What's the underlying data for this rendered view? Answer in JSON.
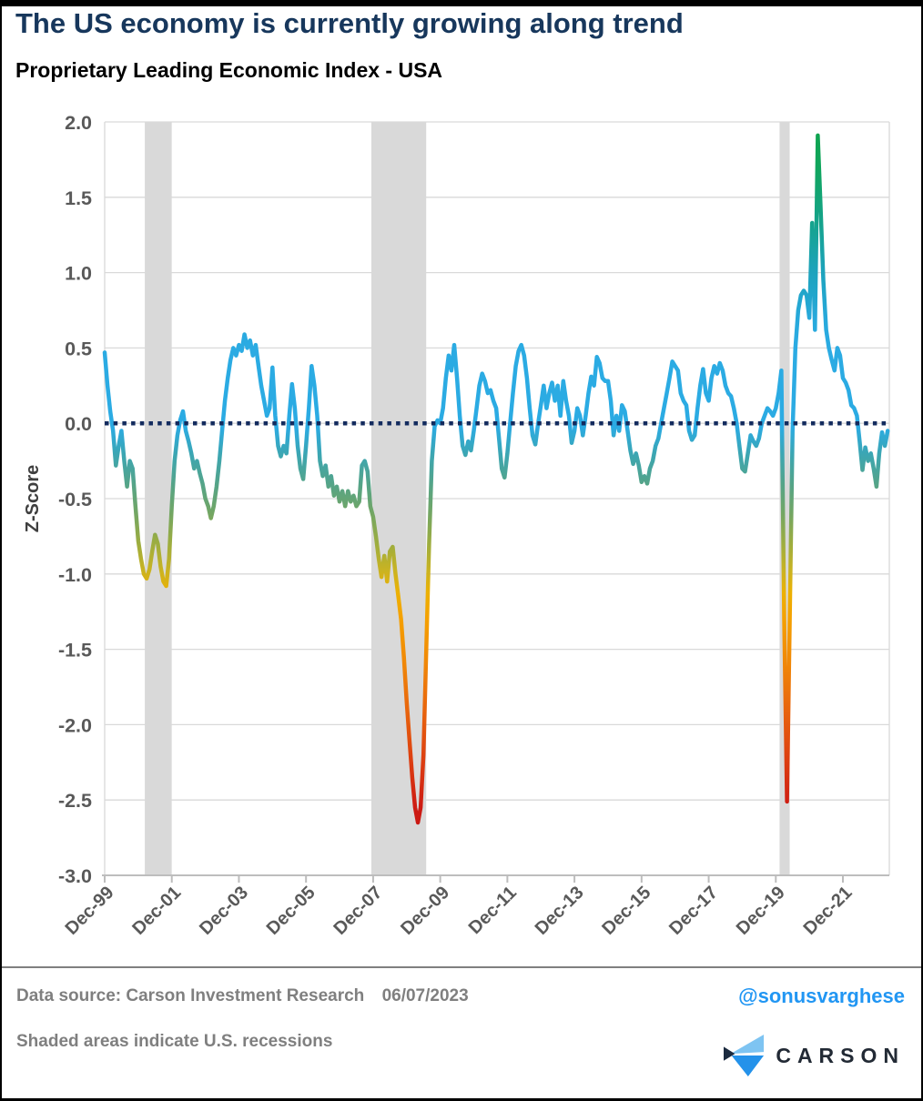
{
  "header": {
    "title": "The US economy is currently growing along trend",
    "subtitle": "Proprietary Leading Economic Index - USA"
  },
  "footer": {
    "source_label": "Data source:",
    "source": "Carson Investment Research",
    "date": "06/07/2023",
    "handle": "@sonusvarghese",
    "note": "Shaded areas indicate U.S. recessions",
    "brand": "CARSON"
  },
  "colors": {
    "title": "#17375c",
    "axis_text": "#595959",
    "axis_line": "#bdbdbd",
    "grid": "#d9d9d9",
    "recession": "#d9d9d9",
    "zero_line": "#132b5e",
    "plot_border": "#d9d9d9",
    "handle_blue": "#2196f3",
    "logo_light_blue": "#7ec4f2",
    "logo_blue": "#2492ea",
    "logo_dark": "#1b2a3f"
  },
  "chart_data": {
    "type": "line",
    "title": "Proprietary Leading Economic Index - USA",
    "xlabel": "",
    "ylabel": "Z-Score",
    "ylim": [
      -3.0,
      2.0
    ],
    "y_ticks": [
      2.0,
      1.5,
      1.0,
      0.5,
      0.0,
      -0.5,
      -1.0,
      -1.5,
      -2.0,
      -2.5,
      -3.0
    ],
    "x_tick_labels": [
      "Dec-99",
      "Dec-01",
      "Dec-03",
      "Dec-05",
      "Dec-07",
      "Dec-09",
      "Dec-11",
      "Dec-13",
      "Dec-15",
      "Dec-17",
      "Dec-19",
      "Dec-21"
    ],
    "x_tick_month_indices": [
      0,
      24,
      48,
      72,
      96,
      120,
      144,
      168,
      192,
      216,
      240,
      264
    ],
    "start_month": "1999-12",
    "frequency": "monthly",
    "grid": true,
    "zero_line": {
      "value": 0.0,
      "style": "dotted"
    },
    "recessions": [
      {
        "start": "2001-03",
        "end": "2001-11"
      },
      {
        "start": "2007-12",
        "end": "2009-06"
      },
      {
        "start": "2020-02",
        "end": "2020-04"
      }
    ],
    "values": [
      0.47,
      0.25,
      0.08,
      -0.05,
      -0.28,
      -0.15,
      -0.05,
      -0.25,
      -0.42,
      -0.25,
      -0.3,
      -0.55,
      -0.78,
      -0.9,
      -1.0,
      -1.03,
      -0.97,
      -0.85,
      -0.74,
      -0.8,
      -0.95,
      -1.05,
      -1.08,
      -0.9,
      -0.55,
      -0.25,
      -0.08,
      0.02,
      0.08,
      -0.05,
      -0.12,
      -0.2,
      -0.3,
      -0.25,
      -0.33,
      -0.4,
      -0.5,
      -0.55,
      -0.63,
      -0.55,
      -0.42,
      -0.25,
      -0.05,
      0.15,
      0.3,
      0.42,
      0.5,
      0.45,
      0.52,
      0.48,
      0.59,
      0.5,
      0.55,
      0.45,
      0.52,
      0.38,
      0.25,
      0.15,
      0.05,
      0.1,
      0.37,
      0.05,
      -0.15,
      -0.22,
      -0.15,
      -0.2,
      0.05,
      0.26,
      0.1,
      -0.15,
      -0.3,
      -0.37,
      -0.15,
      0.1,
      0.38,
      0.25,
      0.05,
      -0.25,
      -0.35,
      -0.28,
      -0.42,
      -0.35,
      -0.48,
      -0.42,
      -0.52,
      -0.45,
      -0.55,
      -0.45,
      -0.52,
      -0.48,
      -0.55,
      -0.52,
      -0.28,
      -0.25,
      -0.32,
      -0.55,
      -0.62,
      -0.75,
      -0.9,
      -1.02,
      -0.88,
      -1.05,
      -0.85,
      -0.82,
      -1.0,
      -1.15,
      -1.3,
      -1.55,
      -1.85,
      -2.1,
      -2.35,
      -2.55,
      -2.65,
      -2.55,
      -2.2,
      -1.5,
      -0.8,
      -0.25,
      -0.02,
      0.02,
      0.0,
      0.1,
      0.3,
      0.45,
      0.35,
      0.52,
      0.3,
      0.05,
      -0.15,
      -0.21,
      -0.12,
      -0.18,
      -0.05,
      0.1,
      0.25,
      0.33,
      0.28,
      0.2,
      0.22,
      0.15,
      0.1,
      -0.1,
      -0.3,
      -0.36,
      -0.2,
      0.0,
      0.2,
      0.38,
      0.48,
      0.52,
      0.45,
      0.3,
      0.1,
      -0.08,
      -0.14,
      0.0,
      0.12,
      0.25,
      0.1,
      0.2,
      0.27,
      0.15,
      0.25,
      0.05,
      0.28,
      0.15,
      0.05,
      -0.13,
      -0.05,
      0.1,
      0.05,
      -0.08,
      0.05,
      0.2,
      0.31,
      0.25,
      0.44,
      0.4,
      0.3,
      0.28,
      0.28,
      0.15,
      -0.08,
      0.05,
      -0.05,
      0.12,
      0.08,
      -0.05,
      -0.18,
      -0.27,
      -0.2,
      -0.28,
      -0.39,
      -0.35,
      -0.4,
      -0.3,
      -0.25,
      -0.15,
      -0.1,
      0.0,
      0.1,
      0.2,
      0.3,
      0.41,
      0.38,
      0.35,
      0.2,
      0.15,
      0.12,
      -0.05,
      -0.11,
      -0.08,
      0.1,
      0.25,
      0.36,
      0.2,
      0.15,
      0.3,
      0.38,
      0.33,
      0.4,
      0.35,
      0.25,
      0.2,
      0.18,
      0.1,
      0.0,
      -0.15,
      -0.3,
      -0.32,
      -0.2,
      -0.08,
      -0.12,
      -0.15,
      -0.1,
      0.0,
      0.05,
      0.1,
      0.08,
      0.05,
      0.1,
      0.2,
      0.35,
      -1.3,
      -2.51,
      -1.3,
      -0.05,
      0.5,
      0.75,
      0.85,
      0.88,
      0.85,
      0.7,
      1.33,
      0.62,
      1.91,
      1.45,
      0.95,
      0.62,
      0.5,
      0.42,
      0.35,
      0.5,
      0.45,
      0.3,
      0.27,
      0.22,
      0.12,
      0.1,
      0.05,
      -0.12,
      -0.31,
      -0.16,
      -0.25,
      -0.2,
      -0.3,
      -0.42,
      -0.2,
      -0.06,
      -0.15,
      -0.05
    ],
    "line_gradient": [
      {
        "offset": 0.0,
        "color": "#0ea44c"
      },
      {
        "offset": 0.06,
        "color": "#10a55c"
      },
      {
        "offset": 0.13,
        "color": "#15a389"
      },
      {
        "offset": 0.2,
        "color": "#1da3bd"
      },
      {
        "offset": 0.26,
        "color": "#27a9db"
      },
      {
        "offset": 0.3,
        "color": "#2babe3"
      },
      {
        "offset": 0.405,
        "color": "#2babe3"
      },
      {
        "offset": 0.44,
        "color": "#3ba6b4"
      },
      {
        "offset": 0.48,
        "color": "#54a489"
      },
      {
        "offset": 0.52,
        "color": "#73a663"
      },
      {
        "offset": 0.56,
        "color": "#9dad3f"
      },
      {
        "offset": 0.595,
        "color": "#c9b322"
      },
      {
        "offset": 0.625,
        "color": "#ecb103"
      },
      {
        "offset": 0.66,
        "color": "#f5a000"
      },
      {
        "offset": 0.72,
        "color": "#f08708"
      },
      {
        "offset": 0.78,
        "color": "#e8650d"
      },
      {
        "offset": 0.85,
        "color": "#dc3d11"
      },
      {
        "offset": 0.91,
        "color": "#cd1b13"
      },
      {
        "offset": 1.0,
        "color": "#c11212"
      }
    ]
  }
}
